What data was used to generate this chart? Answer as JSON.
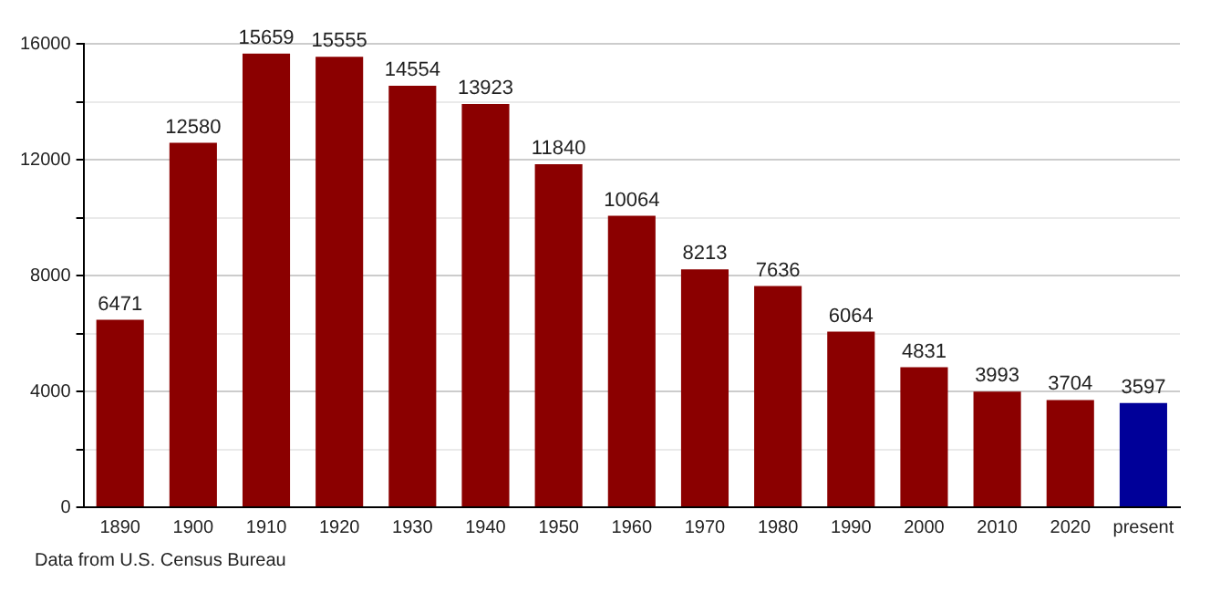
{
  "chart_data": {
    "type": "bar",
    "categories": [
      "1890",
      "1900",
      "1910",
      "1920",
      "1930",
      "1940",
      "1950",
      "1960",
      "1970",
      "1980",
      "1990",
      "2000",
      "2010",
      "2020",
      "present"
    ],
    "values": [
      6471,
      12580,
      15659,
      15555,
      14554,
      13923,
      11840,
      10064,
      8213,
      7636,
      6064,
      4831,
      3993,
      3704,
      3597
    ],
    "colors": [
      "#8b0000",
      "#8b0000",
      "#8b0000",
      "#8b0000",
      "#8b0000",
      "#8b0000",
      "#8b0000",
      "#8b0000",
      "#8b0000",
      "#8b0000",
      "#8b0000",
      "#8b0000",
      "#8b0000",
      "#8b0000",
      "#000099"
    ],
    "ylim": [
      0,
      16000
    ],
    "yticks": [
      0,
      {
        "value": 2000,
        "label": null
      },
      4000,
      {
        "value": 6000,
        "label": null
      },
      8000,
      {
        "value": 10000,
        "label": null
      },
      12000,
      {
        "value": 14000,
        "label": null
      },
      16000
    ],
    "grid": "y",
    "legend": false,
    "data_labels": true,
    "annotations": [
      "Data from U.S. Census Bureau"
    ]
  }
}
